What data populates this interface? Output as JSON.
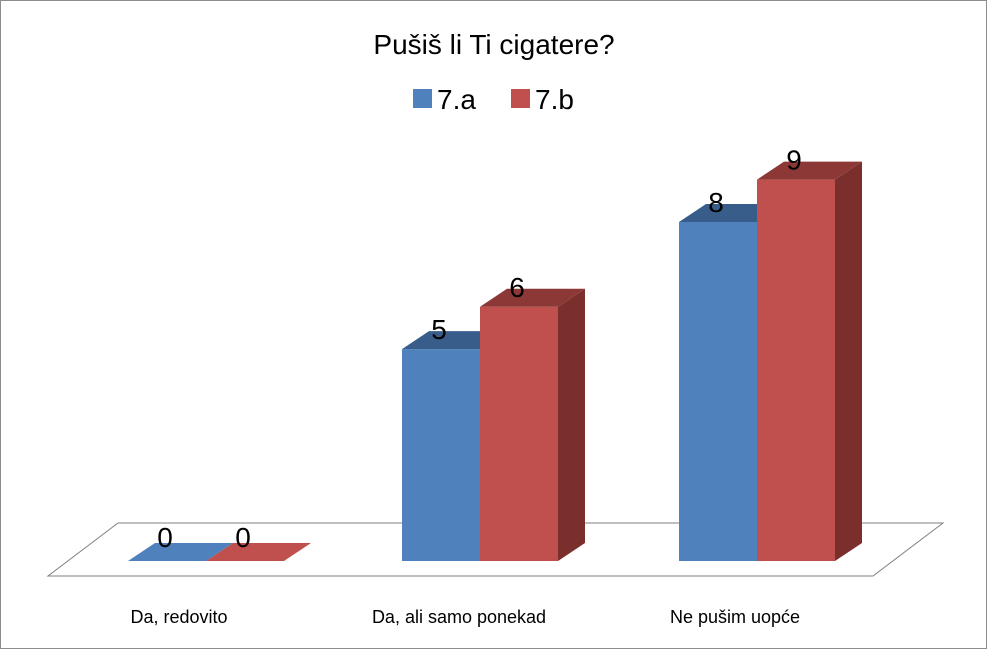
{
  "chart_data": {
    "type": "bar",
    "title": "Pušiš li Ti cigatere?",
    "categories": [
      "Da, redovito",
      "Da, ali samo ponekad",
      "Ne pušim uopće"
    ],
    "series": [
      {
        "name": "7.a",
        "values": [
          0,
          5,
          8
        ],
        "color": "#4F81BD",
        "top_color": "#385D8A",
        "side_color": "#254061"
      },
      {
        "name": "7.b",
        "values": [
          0,
          6,
          9
        ],
        "color": "#C0504D",
        "top_color": "#8C3836",
        "side_color": "#7B2F2D"
      }
    ],
    "ylim": [
      0,
      9
    ],
    "legend_position": "top",
    "grid": false,
    "style": "3d-clustered-column",
    "xlabel": "",
    "ylabel": ""
  }
}
